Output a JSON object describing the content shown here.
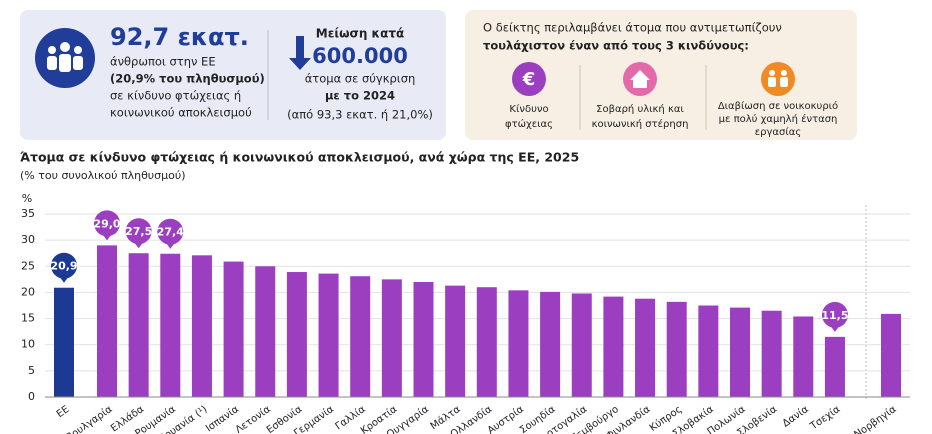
{
  "header": {
    "stat": {
      "value": "92,7 εκατ.",
      "lines": [
        "άνθρωποι στην ΕΕ",
        "(20,9% του πληθυσμού)",
        "σε κίνδυνο φτώχειας ή",
        "κοινωνικού αποκλεισμού"
      ]
    },
    "change": {
      "label": "Μείωση κατά",
      "value": "600.000",
      "lines": [
        "άτομα σε σύγκριση",
        "με το 2024",
        "(από 93,3 εκατ. ή 21,0%)"
      ]
    },
    "risks": {
      "title": [
        "Ο δείκτης περιλαμβάνει άτομα που αντιμετωπίζουν",
        "τουλάχιστον έναν από τους 3 κινδύνους:"
      ],
      "items": [
        [
          "Κίνδυνο",
          "φτώχειας"
        ],
        [
          "Σοβαρή υλική και",
          "κοινωνική στέρηση"
        ],
        [
          "Διαβίωση σε νοικοκυριό",
          "με πολύ χαμηλή ένταση",
          "εργασίας"
        ]
      ]
    }
  },
  "chart_data": {
    "type": "bar",
    "title": "Άτομα σε κίνδυνο φτώχειας ή κοινωνικού αποκλεισμού, ανά χώρα της ΕΕ, 2025",
    "subtitle": "(% του συνολικού πληθυσμού)",
    "y_unit": "%",
    "categories": [
      "ΕΕ",
      "Βουλγαρία",
      "Ελλάδα",
      "Ρουμανία",
      "Λιθουανία (¹)",
      "Ισπανία",
      "Λετονία",
      "Εσθονία",
      "Γερμανία",
      "Γαλλία",
      "Κροατία",
      "Ουγγαρία",
      "Μάλτα",
      "Ολλανδία",
      "Αυστρία",
      "Σουηδία",
      "Πορτογαλία",
      "Λουξεμβούργο",
      "Φινλανδία",
      "Κύπρος",
      "Σλοβακία",
      "Πολωνία",
      "Σλοβενία",
      "Δανία",
      "Τσεχία",
      "Νορβηγία"
    ],
    "values": [
      20.9,
      29.0,
      27.5,
      27.4,
      27.1,
      25.9,
      25.0,
      23.9,
      23.6,
      23.1,
      22.5,
      22.0,
      21.3,
      21.0,
      20.4,
      20.1,
      19.8,
      19.2,
      18.8,
      18.2,
      17.5,
      17.1,
      16.5,
      15.4,
      11.5,
      15.9
    ],
    "value_labels": [
      "20,9",
      "29,0",
      "27,5",
      "27,4",
      null,
      null,
      null,
      null,
      null,
      null,
      null,
      null,
      null,
      null,
      null,
      null,
      null,
      null,
      null,
      null,
      null,
      null,
      null,
      null,
      "11,5",
      null
    ],
    "colors": [
      "#1c3a94",
      "#9b3fc0",
      "#9b3fc0",
      "#9b3fc0",
      "#9b3fc0",
      "#9b3fc0",
      "#9b3fc0",
      "#9b3fc0",
      "#9b3fc0",
      "#9b3fc0",
      "#9b3fc0",
      "#9b3fc0",
      "#9b3fc0",
      "#9b3fc0",
      "#9b3fc0",
      "#9b3fc0",
      "#9b3fc0",
      "#9b3fc0",
      "#9b3fc0",
      "#9b3fc0",
      "#9b3fc0",
      "#9b3fc0",
      "#9b3fc0",
      "#9b3fc0",
      "#9b3fc0",
      "#9b3fc0"
    ],
    "ylim": [
      0,
      35
    ],
    "yticks": [
      0,
      5,
      10,
      15,
      20,
      25,
      30,
      35
    ],
    "grid": true
  }
}
